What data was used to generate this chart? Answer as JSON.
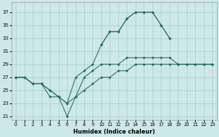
{
  "xlabel": "Humidex (Indice chaleur)",
  "bg_color": "#cce8e8",
  "grid_color": "#aacccc",
  "line_color": "#2a6e60",
  "xlim": [
    -0.5,
    23.5
  ],
  "ylim": [
    20.5,
    38.5
  ],
  "yticks": [
    21,
    23,
    25,
    27,
    29,
    31,
    33,
    35,
    37
  ],
  "xticks": [
    0,
    1,
    2,
    3,
    4,
    5,
    6,
    7,
    8,
    9,
    10,
    11,
    12,
    13,
    14,
    15,
    16,
    17,
    18,
    19,
    20,
    21,
    22,
    23
  ],
  "curves": [
    {
      "x": [
        10,
        11,
        12,
        13,
        14,
        15,
        16,
        17,
        18,
        19,
        20,
        21,
        22,
        23
      ],
      "y": [
        32,
        34,
        34,
        36,
        37,
        37,
        37,
        35,
        33,
        null,
        null,
        null,
        null,
        null
      ]
    },
    {
      "x": [
        0,
        1,
        2,
        3,
        4,
        5,
        6,
        7,
        8,
        9,
        10,
        11,
        12,
        13,
        14,
        15,
        16,
        17,
        18,
        19,
        20,
        21,
        22,
        23
      ],
      "y": [
        27,
        27,
        26,
        26,
        25,
        24,
        23,
        27,
        28,
        29,
        32,
        34,
        34,
        36,
        37,
        37,
        37,
        35,
        33,
        null,
        null,
        null,
        null,
        null
      ]
    },
    {
      "x": [
        0,
        1,
        2,
        3,
        4,
        5,
        6,
        7,
        8,
        9,
        10,
        11,
        12,
        13,
        14,
        15,
        16,
        17,
        18,
        19,
        20,
        21,
        22,
        23
      ],
      "y": [
        27,
        27,
        26,
        26,
        24,
        24,
        21,
        24,
        27,
        28,
        29,
        29,
        29,
        30,
        30,
        30,
        30,
        30,
        30,
        29,
        29,
        29,
        29,
        29
      ]
    },
    {
      "x": [
        0,
        1,
        2,
        3,
        4,
        5,
        6,
        7,
        8,
        9,
        10,
        11,
        12,
        13,
        14,
        15,
        16,
        17,
        18,
        19,
        20,
        21,
        22,
        23
      ],
      "y": [
        27,
        27,
        26,
        26,
        25,
        24,
        23,
        24,
        25,
        26,
        27,
        27,
        28,
        28,
        29,
        29,
        29,
        29,
        29,
        29,
        29,
        29,
        29,
        29
      ]
    }
  ]
}
